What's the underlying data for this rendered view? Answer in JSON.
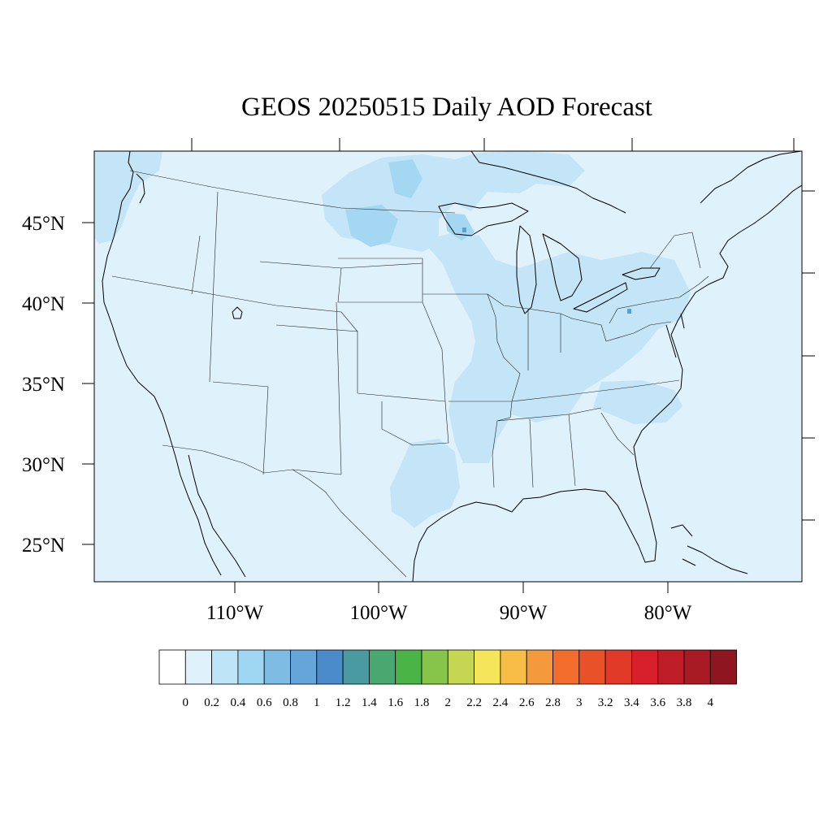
{
  "title": "GEOS 20250515 Daily AOD Forecast",
  "map": {
    "lon_labels": [
      "110°W",
      "100°W",
      "90°W",
      "80°W"
    ],
    "lat_labels": [
      "45°N",
      "40°N",
      "35°N",
      "30°N",
      "25°N"
    ],
    "background_color": "#dff1fb",
    "high_color": "#c3e5f7",
    "higher_color": "#a4d8f2",
    "peak_color": "#5a9fd8"
  },
  "colorbar": {
    "labels": [
      "0",
      "0.2",
      "0.4",
      "0.6",
      "0.8",
      "1",
      "1.2",
      "1.4",
      "1.6",
      "1.8",
      "2",
      "2.2",
      "2.4",
      "2.6",
      "2.8",
      "3",
      "3.2",
      "3.4",
      "3.6",
      "3.8",
      "4"
    ],
    "colors": [
      "#ffffff",
      "#dff1fb",
      "#bde4f7",
      "#9fd6f2",
      "#7fbce3",
      "#66a5da",
      "#4a8bc9",
      "#4a9aa1",
      "#49a870",
      "#4bb446",
      "#86c54a",
      "#c5d652",
      "#f5e55a",
      "#f7bd47",
      "#f59a3c",
      "#f26c2c",
      "#e95229",
      "#e23a28",
      "#d61f2a",
      "#be1c27",
      "#a91b24",
      "#8f1620"
    ]
  }
}
